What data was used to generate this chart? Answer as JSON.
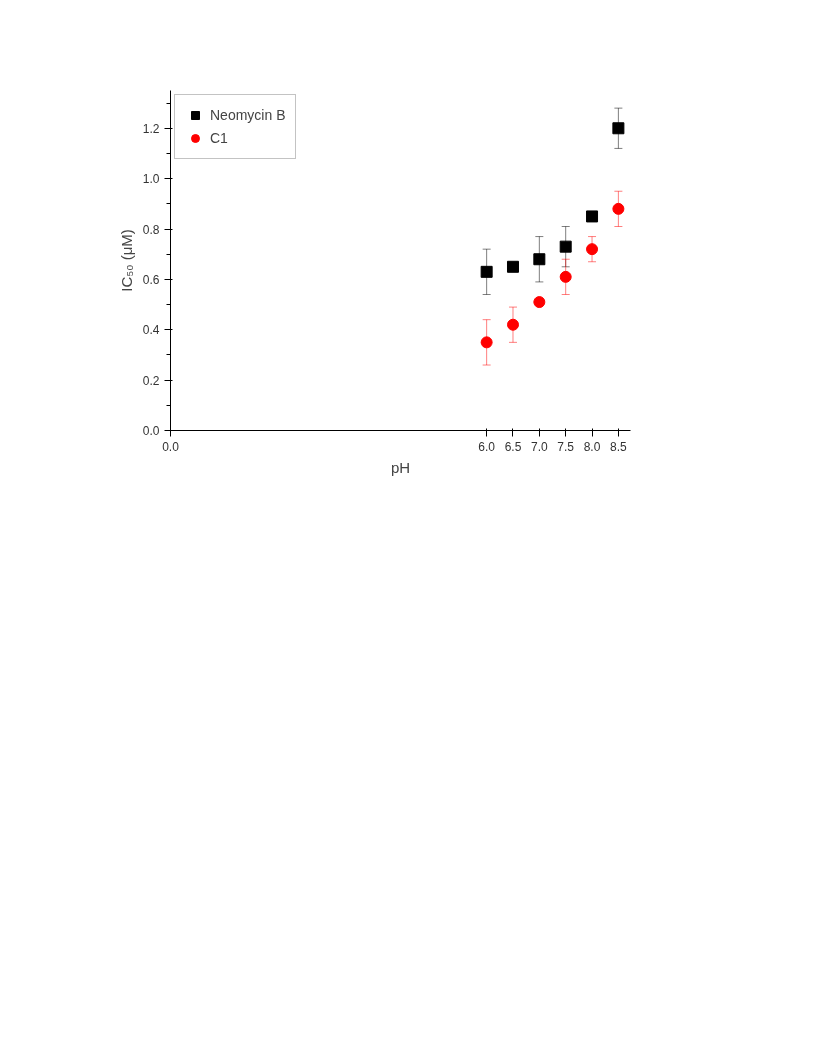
{
  "chart_data": {
    "type": "scatter",
    "xlabel": "pH",
    "ylabel": "IC₅₀ (μM)",
    "x": [
      6.0,
      6.5,
      7.0,
      7.5,
      8.0,
      8.5
    ],
    "series": [
      {
        "name": "Neomycin B",
        "color": "#000000",
        "marker": "square",
        "values": [
          0.63,
          0.65,
          0.68,
          0.73,
          0.85,
          1.2
        ],
        "errors": [
          0.09,
          null,
          0.09,
          0.08,
          null,
          0.08
        ]
      },
      {
        "name": "C1",
        "color": "#ff0000",
        "marker": "circle",
        "values": [
          0.35,
          0.42,
          0.51,
          0.61,
          0.72,
          0.88
        ],
        "errors": [
          0.09,
          0.07,
          null,
          0.07,
          0.05,
          0.07
        ]
      }
    ],
    "xlim": [
      0,
      8.73
    ],
    "xticks": [
      {
        "value": 0.0,
        "label": "0.0"
      },
      {
        "value": 6.0,
        "label": "6.0"
      },
      {
        "value": 6.5,
        "label": "6.5"
      },
      {
        "value": 7.0,
        "label": "7.0"
      },
      {
        "value": 7.5,
        "label": "7.5"
      },
      {
        "value": 8.0,
        "label": "8.0"
      },
      {
        "value": 8.5,
        "label": "8.5"
      }
    ],
    "ylim": [
      0,
      1.35
    ],
    "yticks": [
      {
        "value": 0.0,
        "label": "0.0"
      },
      0.2,
      0.4,
      0.6,
      0.8,
      {
        "value": 1.0,
        "label": "1.0"
      },
      1.2
    ],
    "grid": false,
    "legend": "top left"
  }
}
